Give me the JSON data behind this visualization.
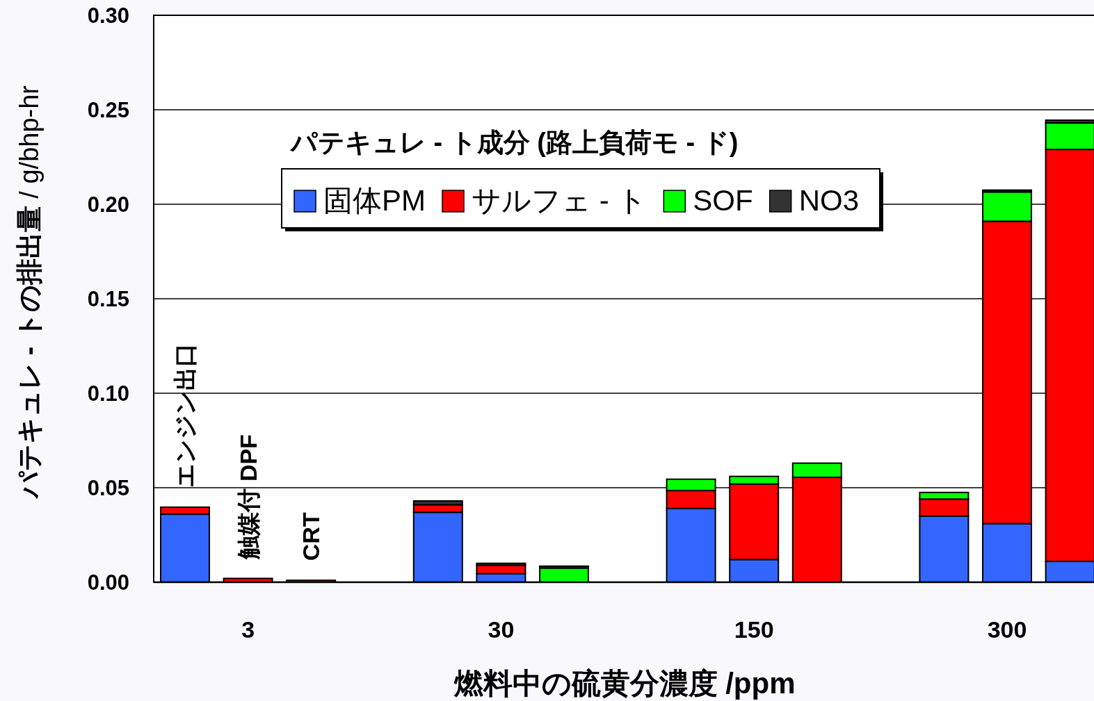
{
  "chart_data": {
    "type": "bar",
    "stacked": true,
    "title": "**パテキュレ - ト成分 (路上負荷モ - ド)**",
    "xlabel": "燃料中の硫黄分濃度 /ppm",
    "ylabel": "**パテキュレ - トの排出量** / g/bhp-hr",
    "categories": [
      null,
      "3",
      null,
      null,
      "30",
      null,
      null,
      "150",
      null,
      null,
      "300",
      null
    ],
    "series": [
      {
        "name": "固体PM",
        "color": "#3366ff",
        "values": [
          0.036,
          null,
          null,
          0.037,
          0.0045,
          null,
          0.039,
          0.012,
          null,
          0.035,
          0.031,
          0.011
        ]
      },
      {
        "name": "サルフェ - ト",
        "color": "#ff0000",
        "values": [
          0.0037,
          0.002,
          0.001,
          0.004,
          0.0045,
          null,
          0.0095,
          0.04,
          0.0555,
          0.009,
          0.16,
          0.218
        ]
      },
      {
        "name": "SOF",
        "color": "#00ff00",
        "values": [
          null,
          null,
          null,
          null,
          null,
          0.0075,
          0.006,
          0.004,
          0.0075,
          0.0035,
          0.0155,
          0.014
        ]
      },
      {
        "name": "NO3",
        "color": "#333333",
        "values": [
          null,
          null,
          null,
          0.002,
          0.001,
          0.001,
          null,
          null,
          null,
          null,
          0.001,
          0.0015
        ]
      }
    ],
    "annotations": [
      "エンジン出口",
      "触媒付 DPF",
      "CRT"
    ],
    "ylim": [
      0,
      0.3
    ],
    "yticks": [
      {
        "value": 0,
        "label": "0.00"
      },
      {
        "value": 0.05,
        "label": "0.05"
      },
      {
        "value": 0.1,
        "label": "0.10"
      },
      {
        "value": 0.15,
        "label": "0.15"
      },
      {
        "value": 0.2,
        "label": "0.20"
      },
      {
        "value": 0.25,
        "label": "0.25"
      },
      {
        "value": 0.3,
        "label": "0.30"
      }
    ],
    "grid": "y",
    "legend": "top"
  }
}
